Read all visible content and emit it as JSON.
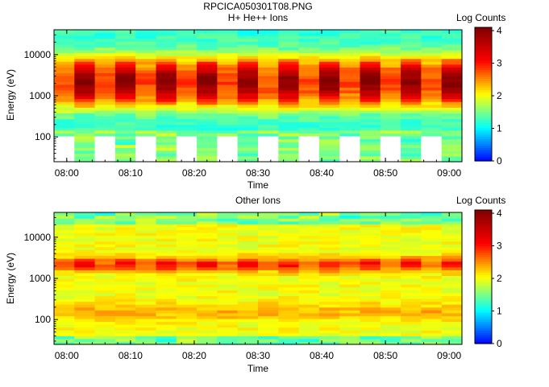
{
  "figure": {
    "title": "RPCICA050301T08.PNG"
  },
  "chart_data": [
    {
      "type": "heatmap",
      "title": "H+ He++ Ions",
      "xlabel": "Time",
      "ylabel": "Energy (eV)",
      "x_ticks": [
        "08:00",
        "08:10",
        "08:20",
        "08:30",
        "08:40",
        "08:50",
        "09:00"
      ],
      "x_range": [
        "07:58",
        "09:02"
      ],
      "y_scale": "log",
      "y_ticks": [
        100,
        1000,
        10000
      ],
      "y_range": [
        25,
        40000
      ],
      "colorbar": {
        "label": "Log Counts",
        "ticks": [
          0,
          1,
          2,
          3,
          4
        ],
        "range": [
          0,
          4.1
        ]
      },
      "peak_energy_eV": 2200,
      "peak_log_counts": 4.0,
      "gaps": {
        "below_energy_eV": 105,
        "between_energy_eV": [
          25,
          105
        ]
      },
      "grid": false
    },
    {
      "type": "heatmap",
      "title": "Other Ions",
      "xlabel": "Time",
      "ylabel": "Energy (eV)",
      "x_ticks": [
        "08:00",
        "08:10",
        "08:20",
        "08:30",
        "08:40",
        "08:50",
        "09:00"
      ],
      "x_range": [
        "07:58",
        "09:02"
      ],
      "y_scale": "log",
      "y_ticks": [
        100,
        1000,
        10000
      ],
      "y_range": [
        25,
        40000
      ],
      "colorbar": {
        "label": "Log Counts",
        "ticks": [
          0,
          1,
          2,
          3,
          4
        ],
        "range": [
          0,
          4.1
        ]
      },
      "peak_energy_eV": 2200,
      "peak_log_counts": 3.2,
      "grid": false
    }
  ],
  "colors": {
    "scale": [
      "#0000ff",
      "#00ffff",
      "#ffff00",
      "#ff0000",
      "#800000"
    ]
  }
}
